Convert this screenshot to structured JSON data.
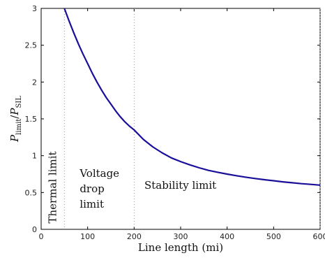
{
  "chart_data": {
    "type": "line",
    "xlabel": "Line length (mi)",
    "ylabel": {
      "base": "P",
      "sub1": "limit",
      "slash": "/",
      "base2": "P",
      "sub2": "SIL"
    },
    "xlim": [
      0,
      600
    ],
    "ylim": [
      0,
      3
    ],
    "xticks": [
      0,
      100,
      200,
      300,
      400,
      500,
      600
    ],
    "xtick_labels": [
      "0",
      "100",
      "200",
      "300",
      "400",
      "500",
      "600"
    ],
    "yticks": [
      0,
      0.5,
      1,
      1.5,
      2,
      2.5,
      3
    ],
    "ytick_labels": [
      "0",
      "0.5",
      "1",
      "1.5",
      "2",
      "2.5",
      "3"
    ],
    "grid": false,
    "series": [
      {
        "color": "#1a0f99",
        "x": [
          50,
          60,
          70,
          80,
          90,
          100,
          110,
          120,
          130,
          140,
          150,
          160,
          170,
          180,
          190,
          200,
          220,
          240,
          260,
          280,
          300,
          320,
          340,
          360,
          380,
          400,
          420,
          440,
          460,
          480,
          500,
          520,
          540,
          560,
          580,
          600
        ],
        "y": [
          3.0,
          2.83,
          2.67,
          2.52,
          2.38,
          2.25,
          2.12,
          2.0,
          1.89,
          1.79,
          1.7,
          1.61,
          1.53,
          1.46,
          1.4,
          1.35,
          1.22,
          1.12,
          1.04,
          0.97,
          0.92,
          0.875,
          0.835,
          0.8,
          0.775,
          0.75,
          0.728,
          0.708,
          0.69,
          0.674,
          0.66,
          0.645,
          0.632,
          0.62,
          0.61,
          0.6
        ]
      }
    ],
    "vlines": [
      {
        "x": 50,
        "color": "#999999"
      },
      {
        "x": 200,
        "color": "#999999"
      },
      {
        "x": 600,
        "color": "#999999"
      }
    ],
    "annotations": [
      {
        "lines": [
          "Thermal limit"
        ],
        "x": 25,
        "y": 0.57,
        "rotate": true
      },
      {
        "lines": [
          "Voltage",
          "drop",
          "limit"
        ],
        "x": 83,
        "y": 0.55
      },
      {
        "lines": [
          "Stability limit"
        ],
        "x": 222,
        "y": 0.6
      }
    ]
  }
}
